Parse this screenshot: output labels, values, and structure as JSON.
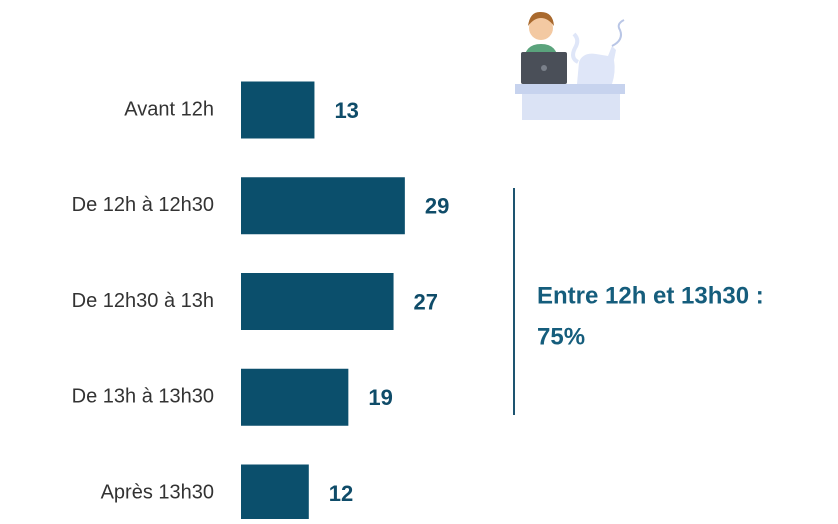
{
  "chart_data": {
    "type": "bar",
    "orientation": "horizontal",
    "categories": [
      "Avant 12h",
      "De 12h à 12h30",
      "De 12h30 à 13h",
      "De 13h à 13h30",
      "Après 13h30"
    ],
    "values": [
      13,
      29,
      27,
      19,
      12
    ],
    "color": "#0b4f6c",
    "annotation": [
      "Entre 12h et 13h30 :",
      "75%"
    ]
  }
}
